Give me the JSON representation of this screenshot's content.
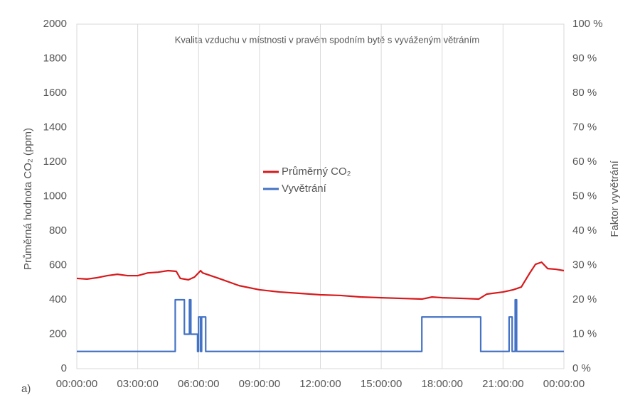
{
  "chart_data": {
    "type": "line",
    "title": "Kvalita vzduchu v místnosti v pravém spodním bytě s vyváženým větráním",
    "y_label": "Průměrná hodnota CO₂ (ppm)",
    "y2_label": "Faktor vyvětrání",
    "panel_label": "a)",
    "grid": "x",
    "legend": "center",
    "xlim": [
      0,
      24
    ],
    "xticks": [
      {
        "value": 0,
        "label": "00:00:00"
      },
      {
        "value": 3,
        "label": "03:00:00"
      },
      {
        "value": 6,
        "label": "06:00:00"
      },
      {
        "value": 9,
        "label": "09:00:00"
      },
      {
        "value": 12,
        "label": "12:00:00"
      },
      {
        "value": 15,
        "label": "15:00:00"
      },
      {
        "value": 18,
        "label": "18:00:00"
      },
      {
        "value": 21,
        "label": "21:00:00"
      },
      {
        "value": 24,
        "label": "00:00:00"
      }
    ],
    "ylim": [
      0,
      2000
    ],
    "yticks": [
      0,
      200,
      400,
      600,
      800,
      1000,
      1200,
      1400,
      1600,
      1800,
      2000
    ],
    "y2lim": [
      0,
      100
    ],
    "y2ticks": [
      {
        "value": 0,
        "label": "0 %"
      },
      {
        "value": 10,
        "label": "10 %"
      },
      {
        "value": 20,
        "label": "20 %"
      },
      {
        "value": 30,
        "label": "30 %"
      },
      {
        "value": 40,
        "label": "40 %"
      },
      {
        "value": 50,
        "label": "50 %"
      },
      {
        "value": 60,
        "label": "60 %"
      },
      {
        "value": 70,
        "label": "70 %"
      },
      {
        "value": 80,
        "label": "80 %"
      },
      {
        "value": 90,
        "label": "90 %"
      },
      {
        "value": 100,
        "label": "100 %"
      }
    ],
    "series": [
      {
        "name": "Průměrný CO₂",
        "color": "#d7191c",
        "x": [
          0,
          0.5,
          1,
          1.5,
          2,
          2.5,
          3,
          3.5,
          4,
          4.5,
          4.9,
          5.1,
          5.5,
          5.8,
          6.1,
          6.2,
          7,
          8,
          9,
          10,
          11,
          12,
          13,
          14,
          15,
          16,
          17,
          17.5,
          18,
          19,
          19.8,
          20.2,
          21,
          21.5,
          21.9,
          22.3,
          22.6,
          22.9,
          23.2,
          23.6,
          24
        ],
        "values": [
          524,
          520,
          528,
          540,
          548,
          540,
          540,
          556,
          560,
          569,
          565,
          524,
          516,
          532,
          569,
          556,
          524,
          482,
          458,
          445,
          437,
          429,
          425,
          416,
          412,
          408,
          404,
          416,
          412,
          408,
          404,
          433,
          445,
          458,
          474,
          552,
          606,
          618,
          581,
          577,
          569
        ]
      },
      {
        "name": "Vyvětrání",
        "color": "#4472c4",
        "axis": "y2",
        "x": [
          0,
          4.85,
          4.85,
          5.3,
          5.3,
          5.55,
          5.55,
          5.62,
          5.62,
          5.95,
          5.95,
          6.0,
          6.0,
          6.1,
          6.1,
          6.15,
          6.15,
          6.35,
          6.35,
          17.0,
          17.0,
          19.9,
          19.9,
          21.3,
          21.3,
          21.45,
          21.45,
          21.6,
          21.6,
          21.67,
          21.67,
          24
        ],
        "values": [
          5,
          5,
          20,
          20,
          10,
          10,
          20,
          20,
          10,
          10,
          5,
          5,
          15,
          15,
          5,
          5,
          15,
          15,
          5,
          5,
          15,
          15,
          5,
          5,
          15,
          15,
          5,
          5,
          20,
          20,
          5,
          5
        ]
      }
    ]
  }
}
